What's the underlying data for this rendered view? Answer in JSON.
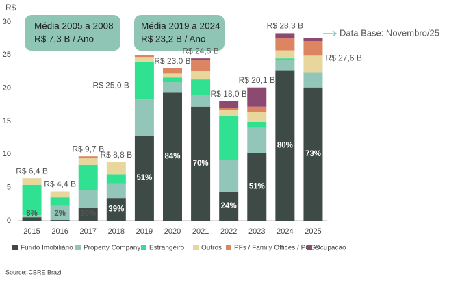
{
  "chart_data": {
    "type": "stacked_bar",
    "y_unit_label": "R$",
    "categories": [
      "2015",
      "2016",
      "2017",
      "2018",
      "2019",
      "2020",
      "2021",
      "2022",
      "2023",
      "2024",
      "2025"
    ],
    "series": [
      {
        "name": "Fundo Imobiliário",
        "color": "#3e4a46",
        "values": [
          0.5,
          0.1,
          1.9,
          3.4,
          12.8,
          19.3,
          17.2,
          4.3,
          10.2,
          22.7,
          20.1
        ]
      },
      {
        "name": "Property Company",
        "color": "#92c6b8",
        "values": [
          0.3,
          2.1,
          2.7,
          2.2,
          5.5,
          1.6,
          1.8,
          4.9,
          3.8,
          1.5,
          2.3
        ]
      },
      {
        "name": "Estrangeiro",
        "color": "#2fe190",
        "values": [
          4.6,
          1.3,
          3.8,
          1.4,
          5.7,
          0.7,
          2.3,
          6.6,
          0.9,
          0.3,
          0
        ]
      },
      {
        "name": "Outros",
        "color": "#e8d79c",
        "values": [
          1.0,
          0.9,
          1.0,
          1.8,
          0.7,
          0.6,
          1.3,
          0.9,
          1.5,
          1.2,
          2.5
        ]
      },
      {
        "name": "PFs / Family Offices / PCGs",
        "color": "#dd8460",
        "values": [
          0,
          0,
          0.3,
          0,
          0.3,
          0.8,
          1.6,
          0.3,
          0.8,
          1.8,
          2.2
        ]
      },
      {
        "name": "Ocupação",
        "color": "#8d4a70",
        "values": [
          0,
          0,
          0,
          0,
          0,
          0,
          0.3,
          1.0,
          2.9,
          0.8,
          0.5
        ]
      }
    ],
    "totals": {
      "values": [
        6.4,
        4.4,
        9.7,
        8.8,
        25.0,
        23.0,
        24.5,
        18.0,
        20.1,
        28.3,
        27.6
      ],
      "value_labels": [
        "R$ 6,4 B",
        "R$ 4,4 B",
        "R$ 9,7 B",
        "R$ 8,8 B",
        "R$ 25,0 B",
        "R$ 23,0 B",
        "R$ 24,5 B",
        "R$ 18,0 B",
        "R$ 20,1 B",
        "R$ 28,3 B",
        "R$ 27,6 B"
      ]
    },
    "fund_share_labels": [
      "8%",
      "2%",
      "20%",
      "39%",
      "51%",
      "84%",
      "70%",
      "24%",
      "51%",
      "80%",
      "73%"
    ],
    "annotations": [
      {
        "line1": "Média 2005 a 2008",
        "line2": "R$ 7,3 B / Ano"
      },
      {
        "line1": "Média 2019 a 2024",
        "line2": "R$ 23,2 B / Ano"
      }
    ],
    "data_base_note": "Data Base: Novembro/25",
    "source": "Source: CBRE Brazil",
    "ylim": [
      0,
      30
    ],
    "yticks": [
      0,
      5,
      10,
      15,
      20,
      25,
      30
    ],
    "grid": false
  }
}
